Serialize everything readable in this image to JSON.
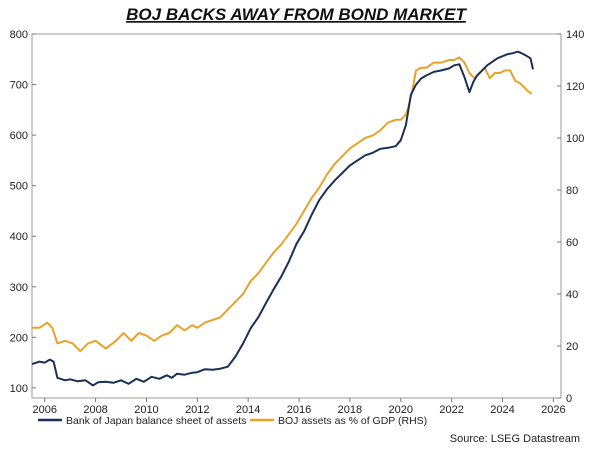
{
  "chart_data": {
    "type": "line",
    "title": "BOJ BACKS AWAY FROM BOND MARKET",
    "source": "Source: LSEG Datastream",
    "colors": {
      "balance_sheet": "#1b2f57",
      "pct_gdp": "#e8a22c"
    },
    "x_axis": {
      "range": [
        2005.5,
        2026.3
      ],
      "ticks": [
        "2006",
        "2008",
        "2010",
        "2012",
        "2014",
        "2016",
        "2018",
        "2020",
        "2022",
        "2024",
        "2026"
      ]
    },
    "y_left": {
      "range": [
        80,
        800
      ],
      "ticks": [
        "100",
        "200",
        "300",
        "400",
        "500",
        "600",
        "700",
        "800"
      ]
    },
    "y_right": {
      "range": [
        0,
        140
      ],
      "ticks": [
        "0",
        "20",
        "40",
        "60",
        "80",
        "100",
        "120",
        "140"
      ]
    },
    "grid": false,
    "legend": [
      "Bank of Japan balance sheet of assets",
      "BOJ assets as % of GDP (RHS)"
    ],
    "series": [
      {
        "name": "Bank of Japan balance sheet of assets",
        "axis": "left",
        "x": [
          2005.5,
          2005.8,
          2006.0,
          2006.2,
          2006.35,
          2006.5,
          2006.8,
          2007.0,
          2007.3,
          2007.6,
          2007.9,
          2008.1,
          2008.4,
          2008.7,
          2009.0,
          2009.3,
          2009.6,
          2009.9,
          2010.2,
          2010.5,
          2010.8,
          2011.0,
          2011.2,
          2011.5,
          2011.8,
          2012.0,
          2012.3,
          2012.6,
          2012.9,
          2013.2,
          2013.5,
          2013.8,
          2014.1,
          2014.4,
          2014.7,
          2015.0,
          2015.3,
          2015.6,
          2015.9,
          2016.2,
          2016.5,
          2016.8,
          2017.1,
          2017.4,
          2017.7,
          2018.0,
          2018.3,
          2018.6,
          2018.9,
          2019.2,
          2019.5,
          2019.8,
          2020.0,
          2020.2,
          2020.4,
          2020.6,
          2020.8,
          2021.0,
          2021.3,
          2021.6,
          2021.9,
          2022.1,
          2022.3,
          2022.5,
          2022.6,
          2022.7,
          2022.85,
          2023.0,
          2023.2,
          2023.4,
          2023.6,
          2023.8,
          2024.0,
          2024.2,
          2024.4,
          2024.6,
          2024.75,
          2024.9,
          2025.1,
          2025.2
        ],
        "values": [
          147,
          152,
          150,
          156,
          152,
          120,
          115,
          117,
          113,
          115,
          105,
          111,
          112,
          110,
          115,
          108,
          118,
          112,
          122,
          118,
          125,
          120,
          128,
          126,
          130,
          131,
          137,
          136,
          138,
          142,
          162,
          188,
          218,
          240,
          268,
          295,
          320,
          350,
          385,
          410,
          443,
          472,
          493,
          510,
          525,
          540,
          550,
          560,
          565,
          573,
          575,
          578,
          590,
          620,
          680,
          700,
          712,
          718,
          725,
          728,
          732,
          738,
          740,
          715,
          700,
          685,
          705,
          718,
          728,
          738,
          745,
          752,
          756,
          760,
          762,
          765,
          762,
          758,
          752,
          730
        ]
      },
      {
        "name": "BOJ assets as % of GDP (RHS)",
        "axis": "right",
        "x": [
          2005.5,
          2005.8,
          2006.1,
          2006.3,
          2006.5,
          2006.8,
          2007.1,
          2007.4,
          2007.7,
          2008.0,
          2008.4,
          2008.8,
          2009.1,
          2009.4,
          2009.7,
          2010.0,
          2010.3,
          2010.6,
          2010.9,
          2011.2,
          2011.5,
          2011.8,
          2012.0,
          2012.3,
          2012.6,
          2012.9,
          2013.2,
          2013.5,
          2013.8,
          2014.1,
          2014.4,
          2014.7,
          2015.0,
          2015.3,
          2015.6,
          2015.9,
          2016.2,
          2016.5,
          2016.8,
          2017.1,
          2017.4,
          2017.7,
          2018.0,
          2018.3,
          2018.6,
          2018.9,
          2019.2,
          2019.5,
          2019.8,
          2020.0,
          2020.2,
          2020.3,
          2020.45,
          2020.6,
          2020.8,
          2021.0,
          2021.3,
          2021.6,
          2021.9,
          2022.1,
          2022.3,
          2022.5,
          2022.7,
          2022.9,
          2023.1,
          2023.3,
          2023.5,
          2023.7,
          2023.9,
          2024.1,
          2024.3,
          2024.5,
          2024.7,
          2024.9,
          2025.0,
          2025.15
        ],
        "values": [
          27,
          27,
          29,
          27,
          21,
          22,
          21,
          18,
          21,
          22,
          19,
          22,
          25,
          22,
          25,
          24,
          22,
          24,
          25,
          28,
          26,
          28,
          27,
          29,
          30,
          31,
          34,
          37,
          40,
          45,
          48,
          52,
          56,
          59,
          63,
          67,
          72,
          77,
          81,
          86,
          90,
          93,
          96,
          98,
          100,
          101,
          103,
          106,
          107,
          107,
          109,
          112,
          118,
          126,
          127,
          127,
          129,
          129,
          130,
          130,
          131,
          129,
          125,
          123,
          125,
          127,
          123,
          125,
          125,
          126,
          126,
          122,
          121,
          119,
          118,
          117
        ]
      }
    ]
  }
}
